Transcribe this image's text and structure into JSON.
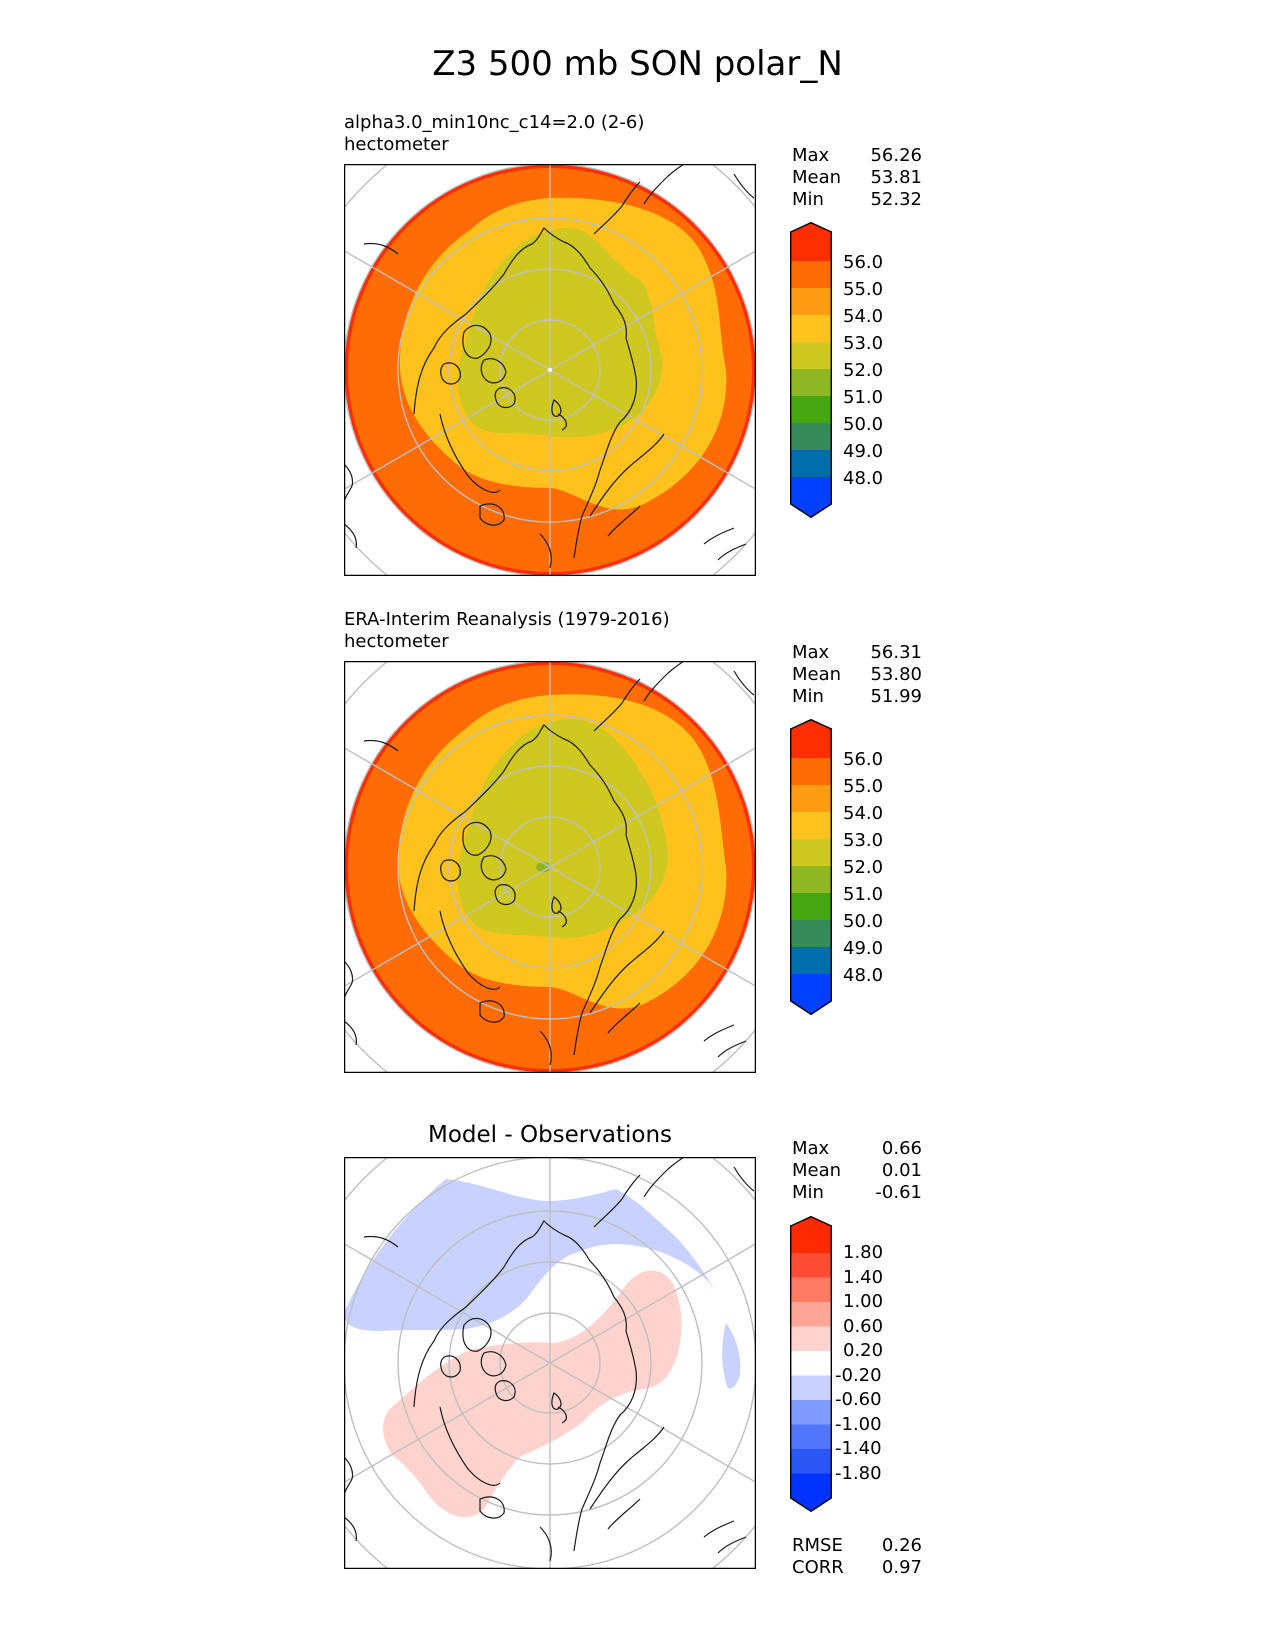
{
  "figure": {
    "title": "Z3 500 mb SON polar_N"
  },
  "palettes": {
    "abs": [
      "#0040ff",
      "#006eaa",
      "#378a5a",
      "#46a611",
      "#8fb722",
      "#cfc820",
      "#ffc21c",
      "#ff9c12",
      "#ff6c05",
      "#ff2e00"
    ],
    "diff": [
      "#0033ff",
      "#2b55f4",
      "#5275ff",
      "#7f9bff",
      "#c9d2ff",
      "#ffffff",
      "#ffd3cd",
      "#ffa697",
      "#ff7a63",
      "#ff4c34",
      "#ff2a00"
    ]
  },
  "panels": [
    {
      "id": "model",
      "title_line1": "alpha3.0_min10nc_c14=2.0 (2-6)",
      "title_line2": "hectometer",
      "stats": [
        {
          "label": "Max",
          "value": "56.26"
        },
        {
          "label": "Mean",
          "value": "53.81"
        },
        {
          "label": "Min",
          "value": "52.32"
        }
      ],
      "colorbar_ticks": [
        "56.0",
        "55.0",
        "54.0",
        "53.0",
        "52.0",
        "51.0",
        "50.0",
        "49.0",
        "48.0"
      ]
    },
    {
      "id": "obs",
      "title_line1": "ERA-Interim Reanalysis (1979-2016)",
      "title_line2": "hectometer",
      "stats": [
        {
          "label": "Max",
          "value": "56.31"
        },
        {
          "label": "Mean",
          "value": "53.80"
        },
        {
          "label": "Min",
          "value": "51.99"
        }
      ],
      "colorbar_ticks": [
        "56.0",
        "55.0",
        "54.0",
        "53.0",
        "52.0",
        "51.0",
        "50.0",
        "49.0",
        "48.0"
      ]
    },
    {
      "id": "diff",
      "title": "Model - Observations",
      "stats": [
        {
          "label": "Max",
          "value": "0.66"
        },
        {
          "label": "Mean",
          "value": "0.01"
        },
        {
          "label": "Min",
          "value": "-0.61"
        }
      ],
      "colorbar_ticks": [
        "1.80",
        "1.40",
        "1.00",
        "0.60",
        "0.20",
        "-0.20",
        "-0.60",
        "-1.00",
        "-1.40",
        "-1.80"
      ],
      "extra_stats": [
        {
          "label": "RMSE",
          "value": "0.26"
        },
        {
          "label": "CORR",
          "value": "0.97"
        }
      ]
    }
  ]
}
